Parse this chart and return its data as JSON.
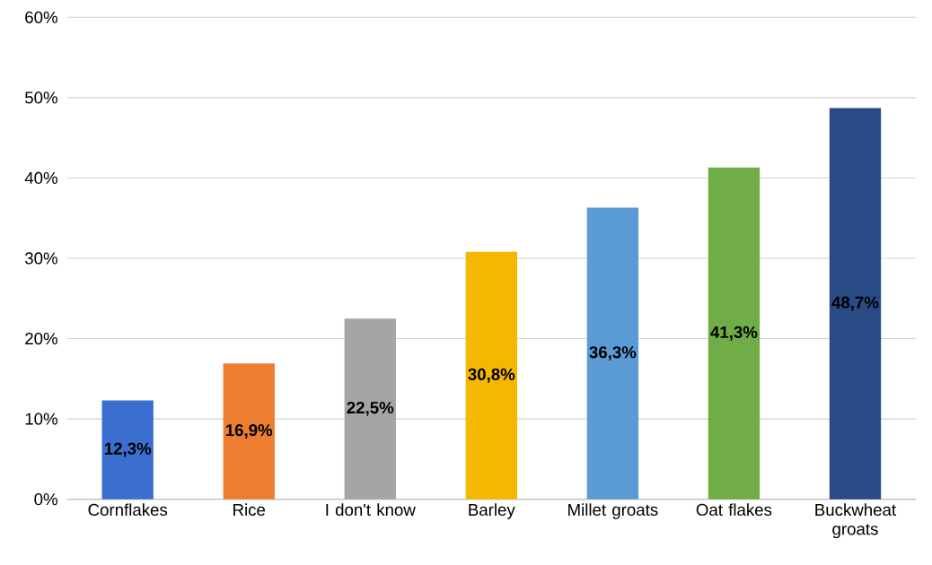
{
  "chart_data": {
    "type": "bar",
    "categories": [
      "Cornflakes",
      "Rice",
      "I don't know",
      "Barley",
      "Millet groats",
      "Oat flakes",
      "Buckwheat groats"
    ],
    "values": [
      12.3,
      16.9,
      22.5,
      30.8,
      36.3,
      41.3,
      48.7
    ],
    "value_labels": [
      "12,3%",
      "16,9%",
      "22,5%",
      "30,8%",
      "36,3%",
      "41,3%",
      "48,7%"
    ],
    "colors": [
      "#3b6fcf",
      "#ed7d31",
      "#a5a5a5",
      "#f5b800",
      "#5b9bd5",
      "#70ad47",
      "#284a85"
    ],
    "ylim": [
      0,
      60
    ],
    "yticks": [
      {
        "value": 0,
        "label": "0%"
      },
      {
        "value": 10,
        "label": "10%"
      },
      {
        "value": 20,
        "label": "20%"
      },
      {
        "value": 30,
        "label": "30%"
      },
      {
        "value": 40,
        "label": "40%"
      },
      {
        "value": 50,
        "label": "50%"
      },
      {
        "value": 60,
        "label": "60%"
      }
    ],
    "grid": "y"
  }
}
